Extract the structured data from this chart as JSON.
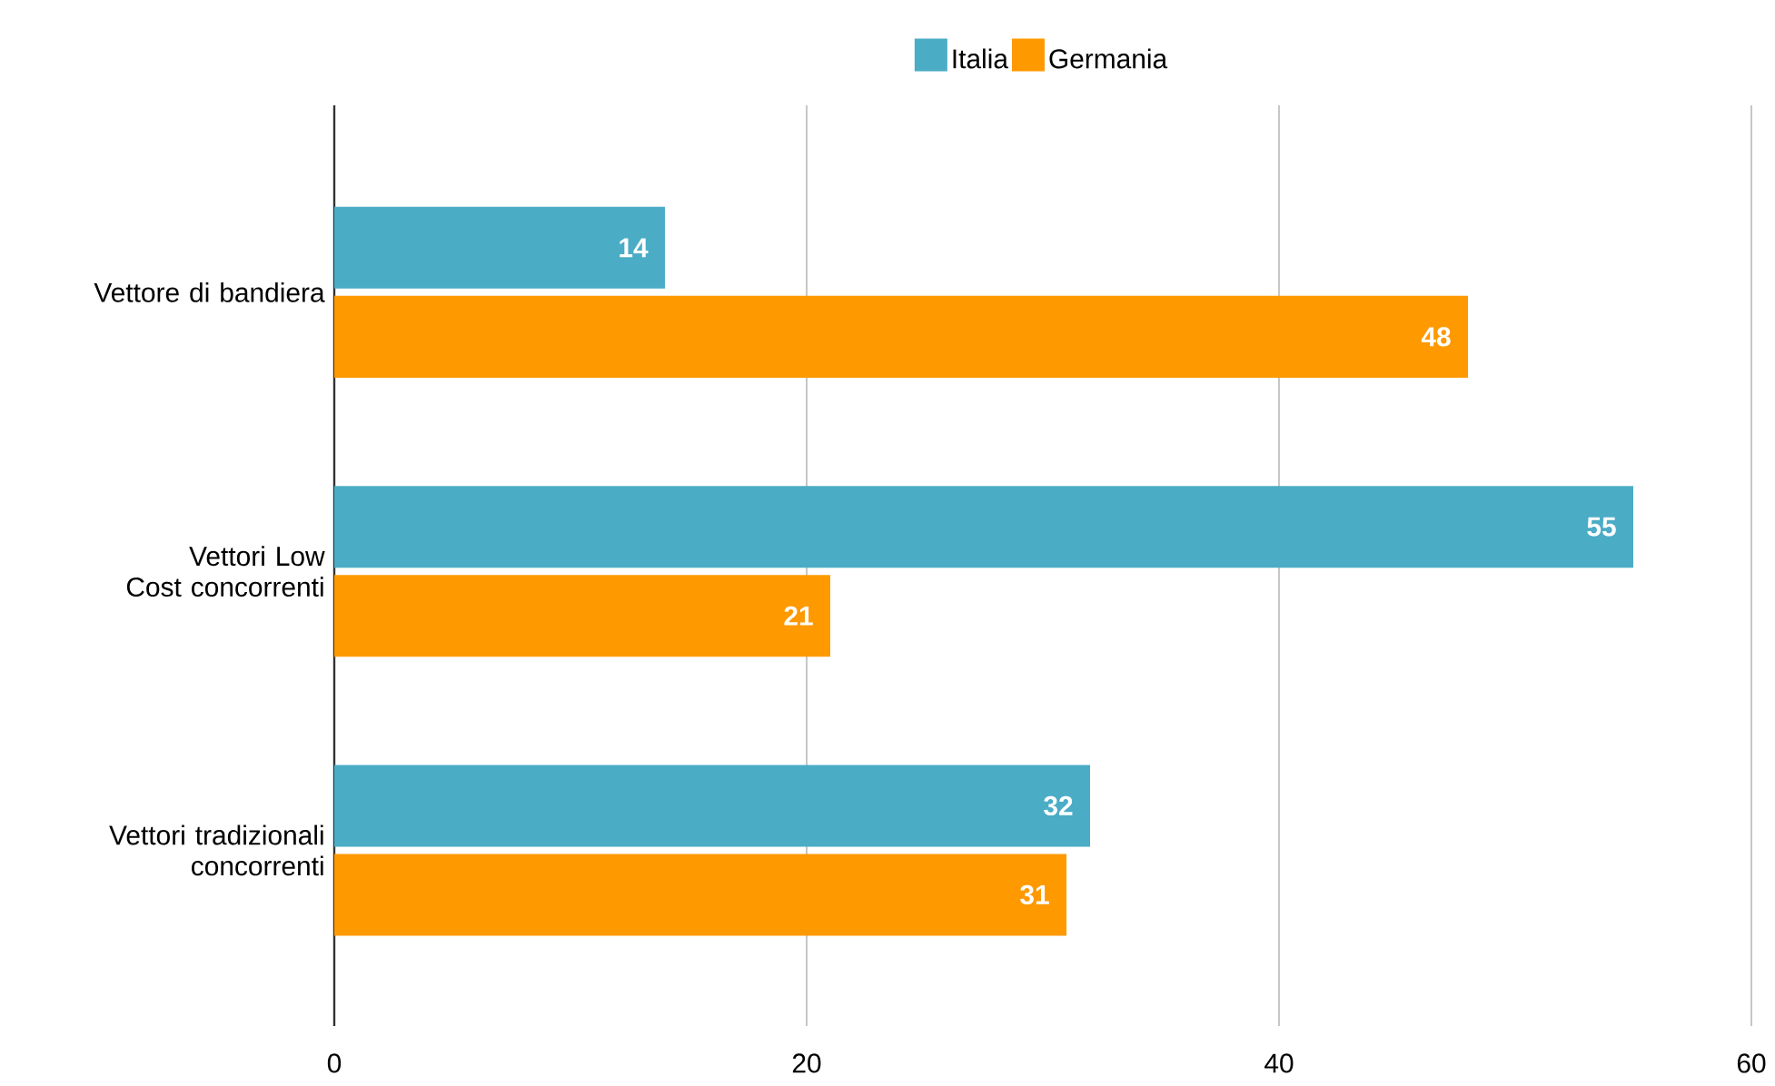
{
  "chart_data": {
    "type": "bar",
    "orientation": "horizontal",
    "categories": [
      "Vettore di bandiera",
      "Vettori Low Cost concorrenti",
      "Vettori tradizionali concorrenti"
    ],
    "series": [
      {
        "name": "Italia",
        "color": "#4bacc6",
        "values": [
          14,
          55,
          32
        ]
      },
      {
        "name": "Germania",
        "color": "#ff9900",
        "values": [
          48,
          21,
          31
        ]
      }
    ],
    "xlim": [
      0,
      60
    ],
    "xticks": [
      0,
      20,
      40,
      60
    ],
    "grid": "x",
    "legend": "top",
    "data_labels": true
  }
}
